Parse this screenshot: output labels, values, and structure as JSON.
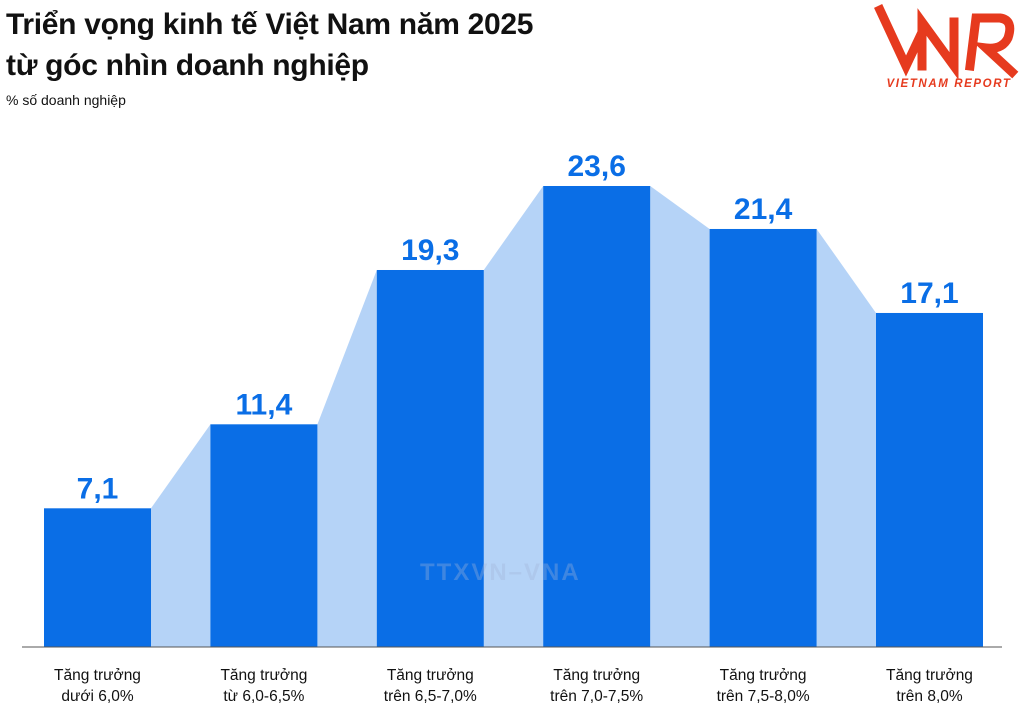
{
  "header": {
    "title_line1": "Triển vọng kinh tế Việt Nam năm 2025",
    "title_line2": "từ góc nhìn doanh nghiệp",
    "unit": "% số doanh nghiệp"
  },
  "logo": {
    "mark": "VNR",
    "tagline": "VIETNAM REPORT"
  },
  "watermark": "TTXVN–VNA",
  "colors": {
    "bar": "#0a6ee6",
    "area": "#b5d3f7",
    "value_text": "#0a6ee6",
    "logo": "#e63a1e"
  },
  "chart_data": {
    "type": "bar",
    "title": "Triển vọng kinh tế Việt Nam năm 2025 từ góc nhìn doanh nghiệp",
    "ylabel": "% số doanh nghiệp",
    "xlabel": "",
    "categories": [
      [
        "Tăng trưởng",
        "dưới 6,0%"
      ],
      [
        "Tăng trưởng",
        "từ 6,0-6,5%"
      ],
      [
        "Tăng trưởng",
        "trên 6,5-7,0%"
      ],
      [
        "Tăng trưởng",
        "trên 7,0-7,5%"
      ],
      [
        "Tăng trưởng",
        "trên 7,5-8,0%"
      ],
      [
        "Tăng trưởng",
        "trên 8,0%"
      ]
    ],
    "values": [
      7.1,
      11.4,
      19.3,
      23.6,
      21.4,
      17.1
    ],
    "value_labels": [
      "7,1",
      "11,4",
      "19,3",
      "23,6",
      "21,4",
      "17,1"
    ],
    "ylim": [
      0,
      23.6
    ],
    "grid": false,
    "legend": "none"
  }
}
